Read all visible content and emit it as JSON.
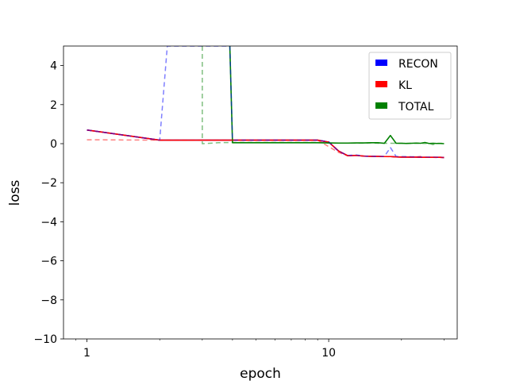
{
  "chart_data": {
    "type": "line",
    "title": "",
    "xlabel": "epoch",
    "ylabel": "loss",
    "xscale": "log",
    "xlim": [
      0.8,
      34
    ],
    "ylim": [
      -10,
      5
    ],
    "xticks": [
      {
        "value": 1,
        "label": "1"
      },
      {
        "value": 10,
        "label": "10"
      }
    ],
    "yticks": [
      {
        "value": -10,
        "label": "−10"
      },
      {
        "value": -8,
        "label": "−8"
      },
      {
        "value": -6,
        "label": "−6"
      },
      {
        "value": -4,
        "label": "−4"
      },
      {
        "value": -2,
        "label": "−2"
      },
      {
        "value": 0,
        "label": "0"
      },
      {
        "value": 2,
        "label": "2"
      },
      {
        "value": 4,
        "label": "4"
      }
    ],
    "grid": false,
    "legend": {
      "position": "top-right",
      "entries": [
        {
          "label": "RECON",
          "color": "#0000ff"
        },
        {
          "label": "KL",
          "color": "#ff0000"
        },
        {
          "label": "TOTAL",
          "color": "#008000"
        }
      ]
    },
    "series": [
      {
        "name": "RECON",
        "color": "#0000ff",
        "style": "solid",
        "x": [
          1,
          2,
          3,
          4,
          5,
          6,
          7,
          8,
          9,
          10,
          11,
          12,
          13,
          14,
          15,
          16,
          17,
          18,
          19,
          20,
          21,
          22,
          23,
          24,
          25,
          26,
          27,
          28,
          29,
          30
        ],
        "y": [
          0.7,
          0.18,
          0.18,
          0.18,
          0.18,
          0.18,
          0.18,
          0.18,
          0.18,
          0.08,
          -0.38,
          -0.62,
          -0.6,
          -0.64,
          -0.65,
          -0.65,
          -0.66,
          -0.66,
          -0.68,
          -0.69,
          -0.69,
          -0.69,
          -0.69,
          -0.7,
          -0.7,
          -0.7,
          -0.7,
          -0.7,
          -0.7,
          -0.71
        ]
      },
      {
        "name": "KL",
        "color": "#ff0000",
        "style": "solid",
        "x": [
          1,
          2,
          3,
          4,
          5,
          6,
          7,
          8,
          9,
          10,
          11,
          12,
          13,
          14,
          15,
          16,
          17,
          18,
          19,
          20,
          21,
          22,
          23,
          24,
          25,
          26,
          27,
          28,
          29,
          30
        ],
        "y": [
          0.7,
          0.18,
          0.18,
          0.18,
          0.18,
          0.18,
          0.18,
          0.18,
          0.18,
          0.08,
          -0.38,
          -0.62,
          -0.6,
          -0.64,
          -0.65,
          -0.65,
          -0.66,
          -0.66,
          -0.68,
          -0.69,
          -0.69,
          -0.69,
          -0.69,
          -0.7,
          -0.7,
          -0.7,
          -0.7,
          -0.7,
          -0.7,
          -0.71
        ]
      },
      {
        "name": "TOTAL",
        "color": "#008000",
        "style": "solid",
        "x": [
          3.9,
          4,
          5,
          6,
          7,
          8,
          9,
          10,
          11,
          12,
          13,
          14,
          15,
          16,
          17,
          18,
          19,
          20,
          21,
          22,
          23,
          24,
          25,
          26,
          27,
          28,
          29,
          30
        ],
        "y": [
          5.0,
          0.05,
          0.05,
          0.05,
          0.05,
          0.05,
          0.05,
          0.04,
          0.03,
          0.03,
          0.04,
          0.04,
          0.05,
          0.05,
          0.02,
          0.42,
          0.02,
          0.02,
          0.01,
          0.02,
          0.03,
          0.02,
          0.06,
          0.01,
          0.02,
          0.01,
          0.01,
          0.0
        ]
      },
      {
        "color": "#0000ff",
        "style": "dashed",
        "x": [
          1,
          2,
          2.15,
          3,
          3.85,
          3.9,
          4,
          5,
          6,
          7,
          8,
          9,
          10,
          11,
          12,
          13,
          14,
          15,
          16,
          17,
          18,
          19,
          20,
          21,
          22,
          23,
          24,
          25,
          26,
          27,
          28,
          29,
          30
        ],
        "y": [
          0.7,
          0.18,
          5.0,
          5.0,
          5.0,
          5.0,
          0.18,
          0.18,
          0.18,
          0.18,
          0.18,
          0.18,
          0.1,
          -0.4,
          -0.6,
          -0.58,
          -0.64,
          -0.64,
          -0.66,
          -0.65,
          -0.2,
          -0.65,
          -0.66,
          -0.66,
          -0.67,
          -0.67,
          -0.68,
          -0.69,
          -0.69,
          -0.69,
          -0.7,
          -0.7,
          -0.71
        ]
      },
      {
        "color": "#ff0000",
        "style": "dashed",
        "x": [
          1,
          2,
          3,
          4,
          5,
          6,
          7,
          8,
          9,
          10,
          11,
          12,
          13,
          14,
          15,
          16,
          17,
          18,
          19,
          20,
          21,
          22,
          23,
          24,
          25,
          26,
          27,
          28,
          29,
          30
        ],
        "y": [
          0.2,
          0.18,
          0.18,
          0.18,
          0.18,
          0.18,
          0.18,
          0.18,
          0.18,
          -0.15,
          -0.45,
          -0.62,
          -0.6,
          -0.63,
          -0.65,
          -0.66,
          -0.66,
          -0.67,
          -0.68,
          -0.68,
          -0.68,
          -0.69,
          -0.69,
          -0.65,
          -0.7,
          -0.7,
          -0.7,
          -0.71,
          -0.71,
          -0.71
        ]
      },
      {
        "color": "#008000",
        "style": "dashed",
        "x": [
          3,
          3,
          3.5,
          4,
          5,
          6,
          7,
          8,
          9,
          10,
          11,
          12,
          13,
          14,
          15,
          16,
          17,
          18,
          19,
          20,
          21,
          22,
          23,
          24,
          25,
          26,
          27,
          28,
          29,
          30
        ],
        "y": [
          5.0,
          0.0,
          0.05,
          0.06,
          0.06,
          0.06,
          0.06,
          0.06,
          0.06,
          0.03,
          0.03,
          0.03,
          0.03,
          0.03,
          0.04,
          0.02,
          0.02,
          0.02,
          0.02,
          0.02,
          0.02,
          0.02,
          0.02,
          0.02,
          0.01,
          0.02,
          -0.05,
          0.02,
          0.02,
          0.01
        ]
      }
    ]
  }
}
